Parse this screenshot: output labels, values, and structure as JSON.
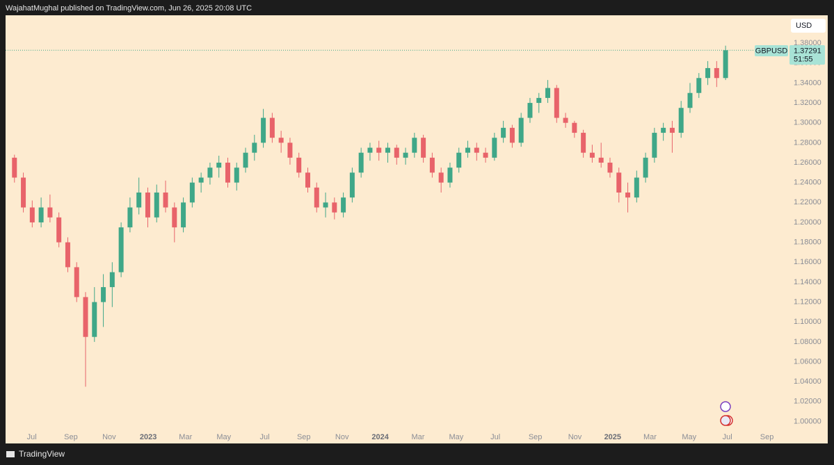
{
  "header": "WajahatMughal published on TradingView.com, Jun 26, 2025 20:08 UTC",
  "footer": "TradingView",
  "chart_data": {
    "type": "candlestick",
    "symbol": "GBPUSD",
    "currency": "USD",
    "last_label": "1.37291",
    "countdown": "51:55",
    "up_color": "#3fa788",
    "down_color": "#e8636a",
    "background": "#fdebd0",
    "xlim": [
      -0.3,
      175.3
    ],
    "ylim": [
      0.978,
      1.408
    ],
    "xticks": [
      {
        "value": 5.6,
        "label": "Jul"
      },
      {
        "value": 14.4,
        "label": "Sep"
      },
      {
        "value": 23.0,
        "label": "Nov"
      },
      {
        "value": 31.8,
        "label": "2023"
      },
      {
        "value": 40.2,
        "label": "Mar"
      },
      {
        "value": 48.8,
        "label": "May"
      },
      {
        "value": 58.0,
        "label": "Jul"
      },
      {
        "value": 66.8,
        "label": "Sep"
      },
      {
        "value": 75.4,
        "label": "Nov"
      },
      {
        "value": 84.0,
        "label": "2024"
      },
      {
        "value": 92.5,
        "label": "Mar"
      },
      {
        "value": 101.1,
        "label": "May"
      },
      {
        "value": 109.9,
        "label": "Jul"
      },
      {
        "value": 118.9,
        "label": "Sep"
      },
      {
        "value": 127.8,
        "label": "Nov"
      },
      {
        "value": 136.3,
        "label": "2025"
      },
      {
        "value": 144.7,
        "label": "Mar"
      },
      {
        "value": 153.5,
        "label": "May"
      },
      {
        "value": 162.1,
        "label": "Jul"
      },
      {
        "value": 171.0,
        "label": "Sep"
      }
    ],
    "yticks": [
      {
        "value": 1.0,
        "label": "1.00000"
      },
      {
        "value": 1.02,
        "label": "1.02000"
      },
      {
        "value": 1.04,
        "label": "1.04000"
      },
      {
        "value": 1.06,
        "label": "1.06000"
      },
      {
        "value": 1.08,
        "label": "1.08000"
      },
      {
        "value": 1.1,
        "label": "1.10000"
      },
      {
        "value": 1.12,
        "label": "1.12000"
      },
      {
        "value": 1.14,
        "label": "1.14000"
      },
      {
        "value": 1.16,
        "label": "1.16000"
      },
      {
        "value": 1.18,
        "label": "1.18000"
      },
      {
        "value": 1.2,
        "label": "1.20000"
      },
      {
        "value": 1.22,
        "label": "1.22000"
      },
      {
        "value": 1.24,
        "label": "1.24000"
      },
      {
        "value": 1.26,
        "label": "1.26000"
      },
      {
        "value": 1.28,
        "label": "1.28000"
      },
      {
        "value": 1.3,
        "label": "1.30000"
      },
      {
        "value": 1.32,
        "label": "1.32000"
      },
      {
        "value": 1.34,
        "label": "1.34000"
      },
      {
        "value": 1.36,
        "label": "1.36000"
      },
      {
        "value": 1.38,
        "label": "1.38000"
      }
    ],
    "x": [
      1.7,
      3.7,
      5.7,
      7.7,
      9.7,
      11.7,
      13.7,
      15.7,
      17.7,
      19.7,
      21.7,
      23.7,
      25.7,
      27.7,
      29.7,
      31.7,
      33.7,
      35.7,
      37.7,
      39.7,
      41.7,
      43.7,
      45.7,
      47.7,
      49.7,
      51.7,
      53.7,
      55.7,
      57.7,
      59.7,
      61.7,
      63.7,
      65.7,
      67.7,
      69.7,
      71.7,
      73.7,
      75.7,
      77.7,
      79.7,
      81.7,
      83.7,
      85.7,
      87.7,
      89.7,
      91.7,
      93.7,
      95.7,
      97.7,
      99.7,
      101.7,
      103.7,
      105.7,
      107.7,
      109.7,
      111.7,
      113.7,
      115.7,
      117.7,
      119.7,
      121.7,
      123.7,
      125.7,
      127.7,
      129.7,
      131.7,
      133.7,
      135.7,
      137.7,
      139.7,
      141.7,
      143.7,
      145.7,
      147.7,
      149.7,
      151.7,
      153.7,
      155.7,
      157.7,
      159.7,
      161.7
    ],
    "open": [
      1.265,
      1.245,
      1.215,
      1.2,
      1.215,
      1.205,
      1.18,
      1.155,
      1.125,
      1.085,
      1.12,
      1.135,
      1.15,
      1.195,
      1.215,
      1.23,
      1.205,
      1.23,
      1.215,
      1.195,
      1.22,
      1.24,
      1.245,
      1.255,
      1.26,
      1.24,
      1.255,
      1.27,
      1.28,
      1.305,
      1.285,
      1.28,
      1.265,
      1.25,
      1.235,
      1.215,
      1.22,
      1.21,
      1.225,
      1.25,
      1.27,
      1.275,
      1.27,
      1.275,
      1.265,
      1.27,
      1.285,
      1.265,
      1.25,
      1.24,
      1.255,
      1.27,
      1.275,
      1.27,
      1.265,
      1.285,
      1.295,
      1.28,
      1.305,
      1.32,
      1.325,
      1.335,
      1.305,
      1.3,
      1.29,
      1.27,
      1.265,
      1.26,
      1.25,
      1.23,
      1.225,
      1.245,
      1.265,
      1.29,
      1.295,
      1.29,
      1.315,
      1.33,
      1.345,
      1.355,
      1.345
    ],
    "high": [
      1.268,
      1.25,
      1.222,
      1.225,
      1.228,
      1.21,
      1.185,
      1.16,
      1.13,
      1.135,
      1.148,
      1.16,
      1.2,
      1.225,
      1.245,
      1.235,
      1.238,
      1.242,
      1.22,
      1.225,
      1.245,
      1.25,
      1.26,
      1.267,
      1.265,
      1.26,
      1.275,
      1.288,
      1.314,
      1.31,
      1.292,
      1.285,
      1.27,
      1.255,
      1.24,
      1.23,
      1.225,
      1.23,
      1.255,
      1.275,
      1.28,
      1.282,
      1.28,
      1.278,
      1.275,
      1.29,
      1.288,
      1.27,
      1.255,
      1.26,
      1.275,
      1.282,
      1.28,
      1.275,
      1.29,
      1.302,
      1.298,
      1.31,
      1.325,
      1.33,
      1.343,
      1.338,
      1.31,
      1.302,
      1.293,
      1.278,
      1.28,
      1.265,
      1.255,
      1.24,
      1.252,
      1.27,
      1.295,
      1.3,
      1.302,
      1.322,
      1.34,
      1.35,
      1.362,
      1.362,
      1.3775
    ],
    "low": [
      1.24,
      1.21,
      1.195,
      1.195,
      1.2,
      1.175,
      1.15,
      1.12,
      1.035,
      1.08,
      1.095,
      1.115,
      1.145,
      1.19,
      1.208,
      1.195,
      1.2,
      1.21,
      1.18,
      1.19,
      1.215,
      1.23,
      1.238,
      1.245,
      1.235,
      1.232,
      1.25,
      1.262,
      1.275,
      1.28,
      1.27,
      1.258,
      1.245,
      1.23,
      1.21,
      1.205,
      1.203,
      1.205,
      1.22,
      1.245,
      1.262,
      1.262,
      1.26,
      1.258,
      1.258,
      1.265,
      1.26,
      1.245,
      1.23,
      1.235,
      1.25,
      1.265,
      1.262,
      1.26,
      1.262,
      1.28,
      1.275,
      1.276,
      1.3,
      1.31,
      1.32,
      1.3,
      1.295,
      1.285,
      1.265,
      1.26,
      1.255,
      1.245,
      1.22,
      1.21,
      1.22,
      1.24,
      1.26,
      1.282,
      1.27,
      1.285,
      1.31,
      1.325,
      1.338,
      1.336,
      1.343
    ],
    "close": [
      1.245,
      1.215,
      1.2,
      1.215,
      1.205,
      1.18,
      1.155,
      1.125,
      1.085,
      1.12,
      1.135,
      1.15,
      1.195,
      1.215,
      1.23,
      1.205,
      1.23,
      1.215,
      1.195,
      1.22,
      1.24,
      1.245,
      1.255,
      1.26,
      1.24,
      1.255,
      1.27,
      1.28,
      1.305,
      1.285,
      1.28,
      1.265,
      1.25,
      1.235,
      1.215,
      1.22,
      1.21,
      1.225,
      1.25,
      1.27,
      1.275,
      1.27,
      1.275,
      1.265,
      1.27,
      1.285,
      1.265,
      1.25,
      1.24,
      1.255,
      1.27,
      1.275,
      1.27,
      1.265,
      1.285,
      1.295,
      1.28,
      1.305,
      1.32,
      1.325,
      1.335,
      1.305,
      1.3,
      1.29,
      1.27,
      1.265,
      1.26,
      1.25,
      1.23,
      1.225,
      1.245,
      1.265,
      1.29,
      1.295,
      1.29,
      1.315,
      1.33,
      1.345,
      1.355,
      1.345,
      1.37291
    ]
  }
}
